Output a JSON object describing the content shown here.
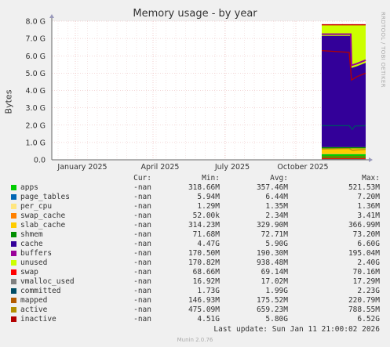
{
  "chart_data": {
    "type": "area",
    "title": "Memory usage - by year",
    "ylabel": "Bytes",
    "ylim": [
      0,
      8.0
    ],
    "y_unit": "G",
    "yticks": [
      "0.0",
      "1.0 G",
      "2.0 G",
      "3.0 G",
      "4.0 G",
      "5.0 G",
      "6.0 G",
      "7.0 G",
      "8.0 G"
    ],
    "xticks": [
      "January 2025",
      "April 2025",
      "July 2025",
      "October 2025"
    ],
    "grid": true,
    "columns": [
      "Cur:",
      "Min:",
      "Avg:",
      "Max:"
    ],
    "series": [
      {
        "name": "apps",
        "color": "#00cc00",
        "cur": "-nan",
        "min": "318.66M",
        "avg": "357.46M",
        "max": "521.53M"
      },
      {
        "name": "page_tables",
        "color": "#0066b3",
        "cur": "-nan",
        "min": "5.94M",
        "avg": "6.44M",
        "max": "7.20M"
      },
      {
        "name": "per_cpu",
        "color": "#ffe680",
        "cur": "-nan",
        "min": "1.29M",
        "avg": "1.35M",
        "max": "1.36M"
      },
      {
        "name": "swap_cache",
        "color": "#ff8000",
        "cur": "-nan",
        "min": "52.00k",
        "avg": "2.34M",
        "max": "3.41M"
      },
      {
        "name": "slab_cache",
        "color": "#ffcc00",
        "cur": "-nan",
        "min": "314.23M",
        "avg": "329.90M",
        "max": "366.99M"
      },
      {
        "name": "shmem",
        "color": "#008f00",
        "cur": "-nan",
        "min": "71.68M",
        "avg": "72.71M",
        "max": "73.20M"
      },
      {
        "name": "cache",
        "color": "#330099",
        "cur": "-nan",
        "min": "4.47G",
        "avg": "5.90G",
        "max": "6.60G"
      },
      {
        "name": "buffers",
        "color": "#990099",
        "cur": "-nan",
        "min": "170.50M",
        "avg": "190.30M",
        "max": "195.04M"
      },
      {
        "name": "unused",
        "color": "#ccff00",
        "cur": "-nan",
        "min": "170.82M",
        "avg": "938.48M",
        "max": "2.40G"
      },
      {
        "name": "swap",
        "color": "#ff0000",
        "cur": "-nan",
        "min": "68.66M",
        "avg": "69.14M",
        "max": "70.16M"
      },
      {
        "name": "vmalloc_used",
        "color": "#808080",
        "cur": "-nan",
        "min": "16.92M",
        "avg": "17.02M",
        "max": "17.29M"
      },
      {
        "name": "committed",
        "color": "#004d66",
        "cur": "-nan",
        "min": "1.73G",
        "avg": "1.99G",
        "max": "2.23G"
      },
      {
        "name": "mapped",
        "color": "#b35a00",
        "cur": "-nan",
        "min": "146.93M",
        "avg": "175.52M",
        "max": "220.79M"
      },
      {
        "name": "active",
        "color": "#b38f00",
        "cur": "-nan",
        "min": "475.09M",
        "avg": "659.23M",
        "max": "788.55M"
      },
      {
        "name": "inactive",
        "color": "#b30000",
        "cur": "-nan",
        "min": "4.51G",
        "avg": "5.80G",
        "max": "6.52G"
      }
    ]
  },
  "side_label": "RRDTOOL / TOBI OETIKER",
  "last_update": "Last update: Sun Jan 11 21:00:02 2026",
  "version": "Munin 2.0.76"
}
